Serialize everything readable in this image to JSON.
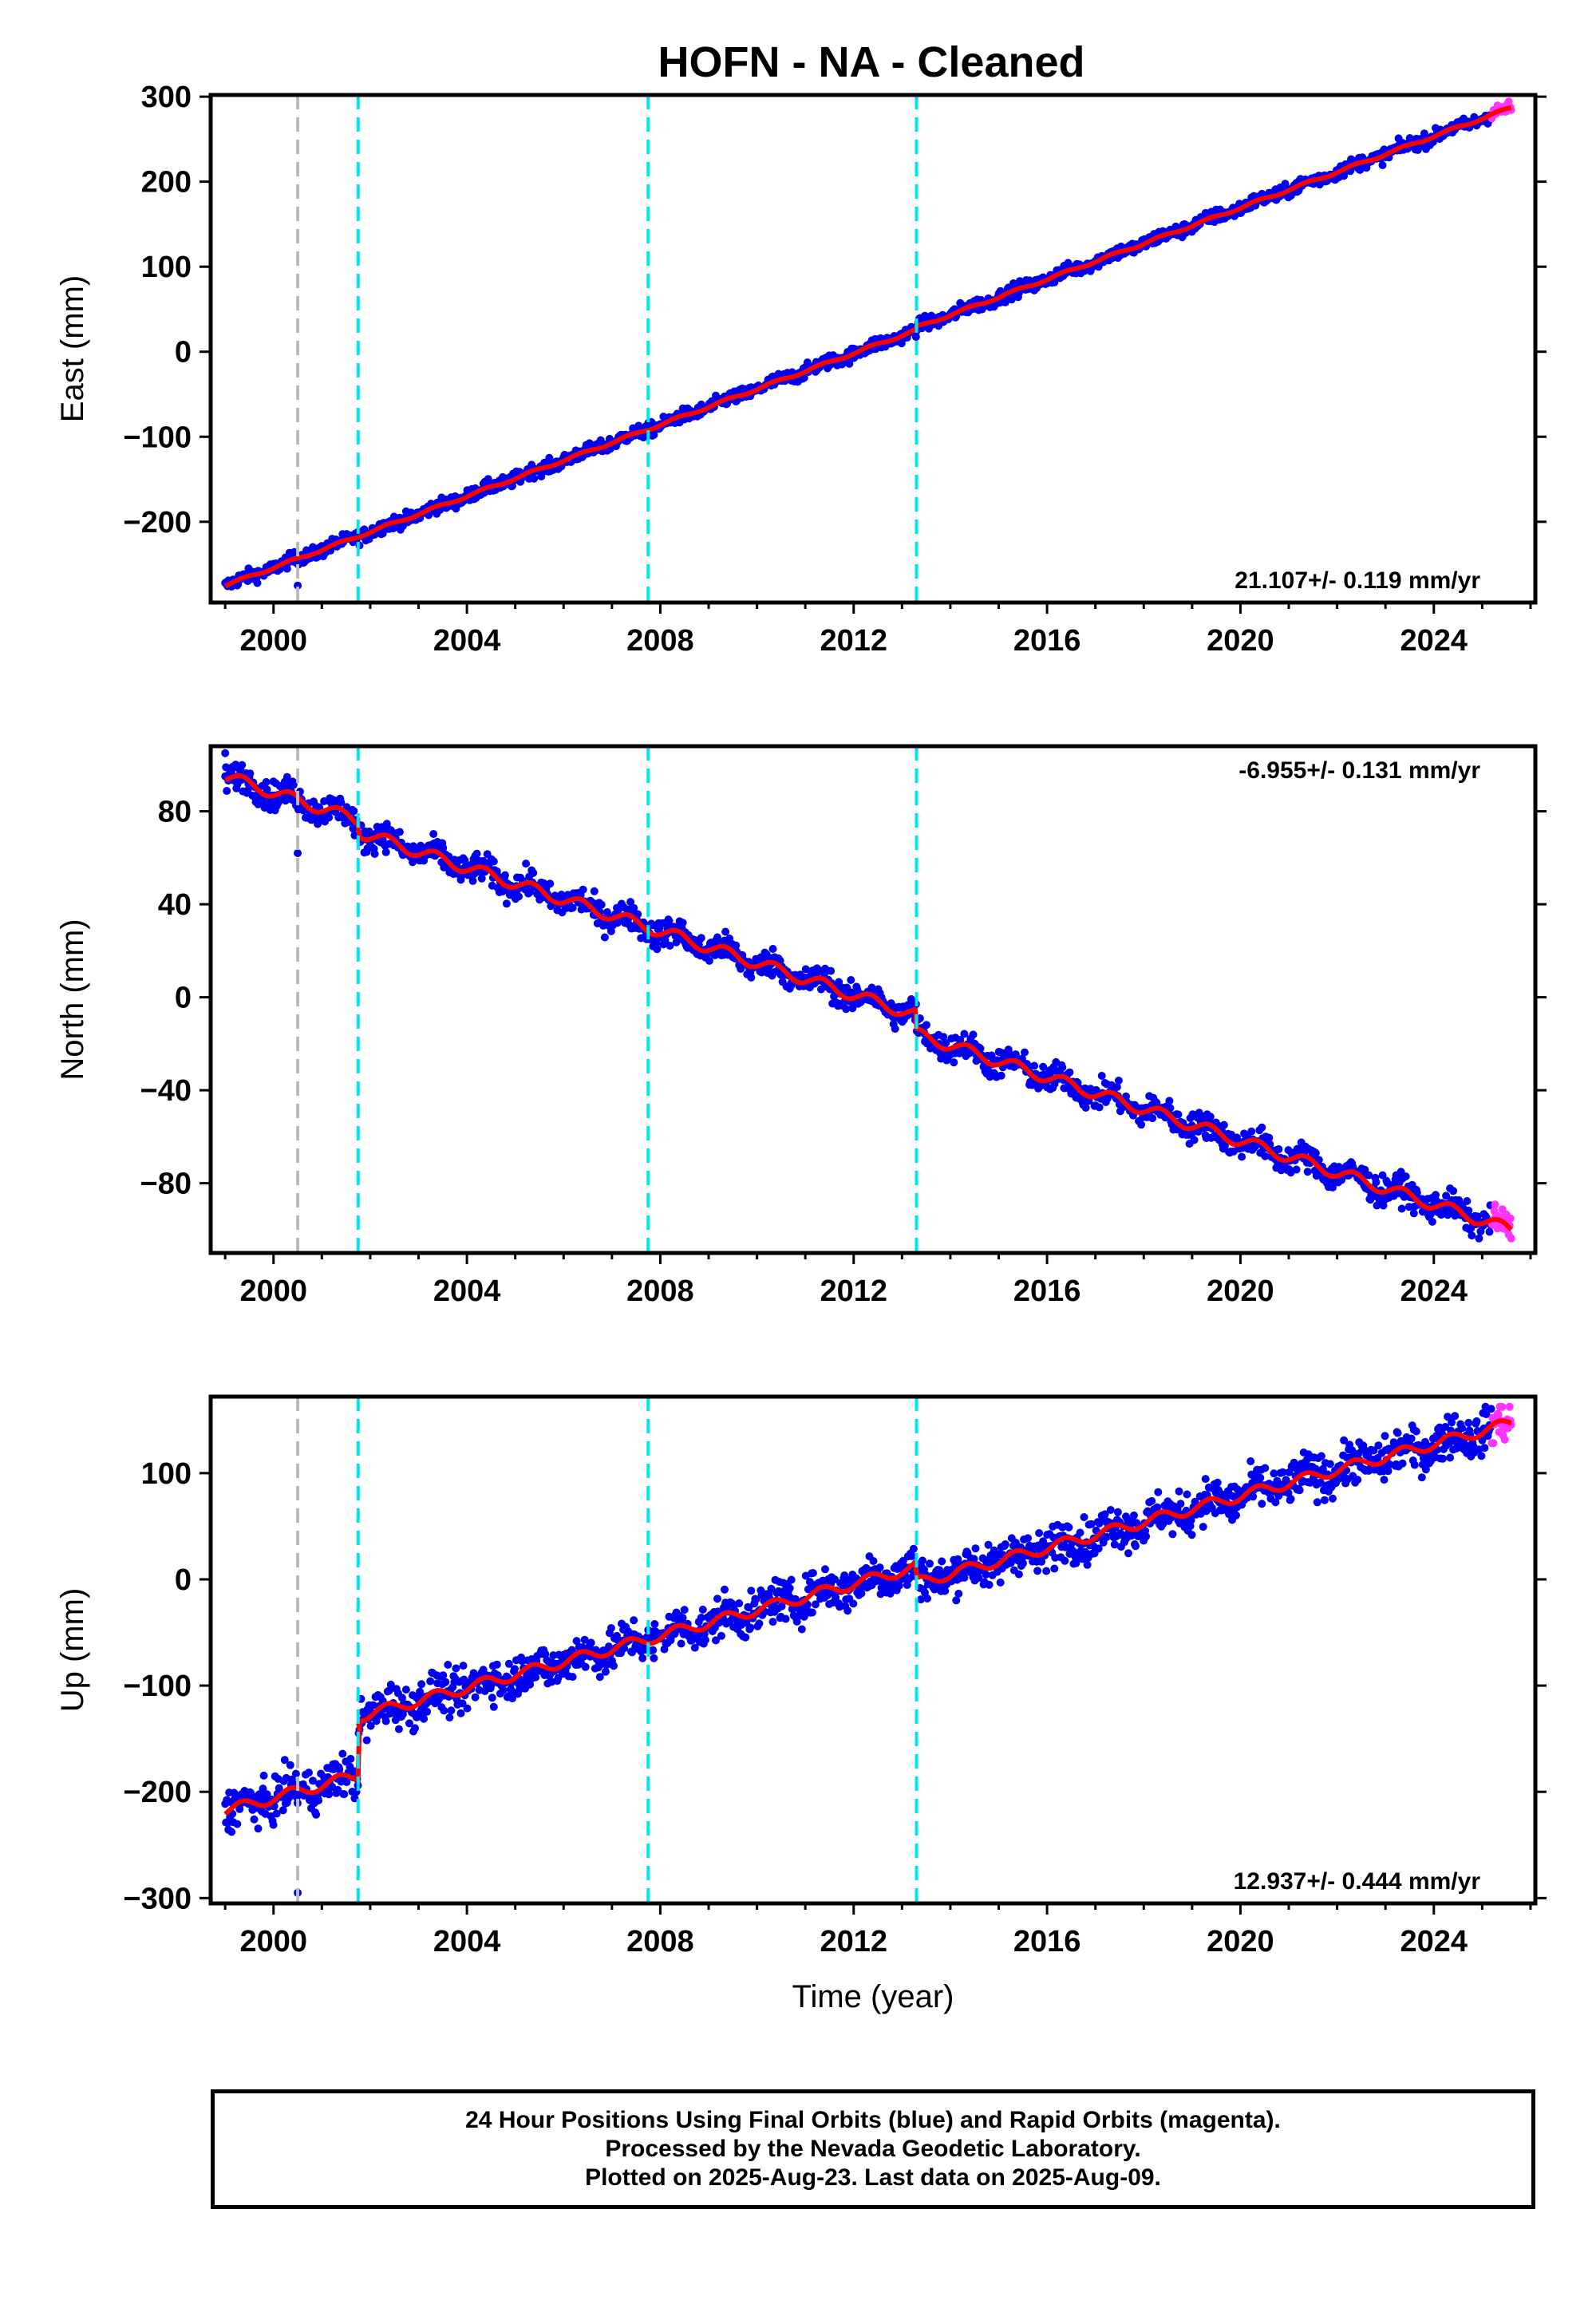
{
  "title": "HOFN  - NA - Cleaned",
  "colors": {
    "final_orbits": "#0000ee",
    "rapid_orbits": "#ff33ff",
    "model": "#ff0000",
    "equipment_change": "#00e5ee",
    "earthquake": "#bbbbbb"
  },
  "chart_data": [
    {
      "type": "scatter",
      "panel": "east",
      "ylabel": "East (mm)",
      "xlim": [
        1998.7,
        2026.1
      ],
      "ylim": [
        -295,
        302
      ],
      "yticks": [
        300,
        200,
        100,
        0,
        -100,
        -200
      ],
      "xticks": [
        2000,
        2004,
        2008,
        2012,
        2016,
        2020,
        2024
      ],
      "velocity_label": "21.107+/- 0.119 mm/yr",
      "velocity_label_position": "bottom-right",
      "trend": {
        "start": [
          1999.0,
          -275
        ],
        "end": [
          2025.6,
          287
        ]
      },
      "noise_mm": 4,
      "offsets": [
        {
          "year": 2013.3,
          "mm": 3
        }
      ],
      "outliers": [
        {
          "x": 2000.5,
          "y": -275
        }
      ],
      "vlines_gray": [
        2000.5
      ],
      "vlines_cyan": [
        2001.75,
        2007.75,
        2013.3
      ]
    },
    {
      "type": "scatter",
      "panel": "north",
      "ylabel": "North (mm)",
      "xlim": [
        1998.7,
        2026.1
      ],
      "ylim": [
        -110,
        108
      ],
      "yticks": [
        80,
        40,
        0,
        -40,
        -80
      ],
      "xticks": [
        2000,
        2004,
        2008,
        2012,
        2016,
        2020,
        2024
      ],
      "velocity_label": "-6.955+/- 0.131 mm/yr",
      "velocity_label_position": "top-right",
      "trend": {
        "start": [
          1999.0,
          95
        ],
        "end": [
          2025.6,
          -100
        ]
      },
      "noise_mm": 3,
      "offsets": [
        {
          "year": 2001.75,
          "mm": -5
        },
        {
          "year": 2013.3,
          "mm": -8
        }
      ],
      "outliers": [
        {
          "x": 2000.5,
          "y": 62
        },
        {
          "x": 1999.0,
          "y": 105
        }
      ],
      "vlines_gray": [
        2000.5
      ],
      "vlines_cyan": [
        2001.75,
        2007.75,
        2013.3
      ]
    },
    {
      "type": "scatter",
      "panel": "up",
      "ylabel": "Up (mm)",
      "xlabel": "Time (year)",
      "xlim": [
        1998.7,
        2026.1
      ],
      "ylim": [
        -305,
        172
      ],
      "yticks": [
        100,
        0,
        -100,
        -200,
        -300
      ],
      "xticks": [
        2000,
        2004,
        2008,
        2012,
        2016,
        2020,
        2024
      ],
      "velocity_label": "12.937+/- 0.444 mm/yr",
      "velocity_label_position": "bottom-right",
      "trend": {
        "start": [
          1999.0,
          -218
        ],
        "end": [
          2025.6,
          147
        ]
      },
      "noise_mm": 10,
      "offsets": [
        {
          "year": 2001.75,
          "mm": 55
        },
        {
          "year": 2013.3,
          "mm": -15
        }
      ],
      "outliers": [
        {
          "x": 2000.5,
          "y": -295
        }
      ],
      "vlines_gray": [
        2000.5
      ],
      "vlines_cyan": [
        2001.75,
        2007.75,
        2013.3
      ]
    }
  ],
  "footer": {
    "line1": "24 Hour Positions Using Final Orbits (blue) and Rapid Orbits (magenta).",
    "line2": "Processed by the Nevada Geodetic Laboratory.",
    "line3": "Plotted on 2025-Aug-23. Last data on 2025-Aug-09."
  }
}
